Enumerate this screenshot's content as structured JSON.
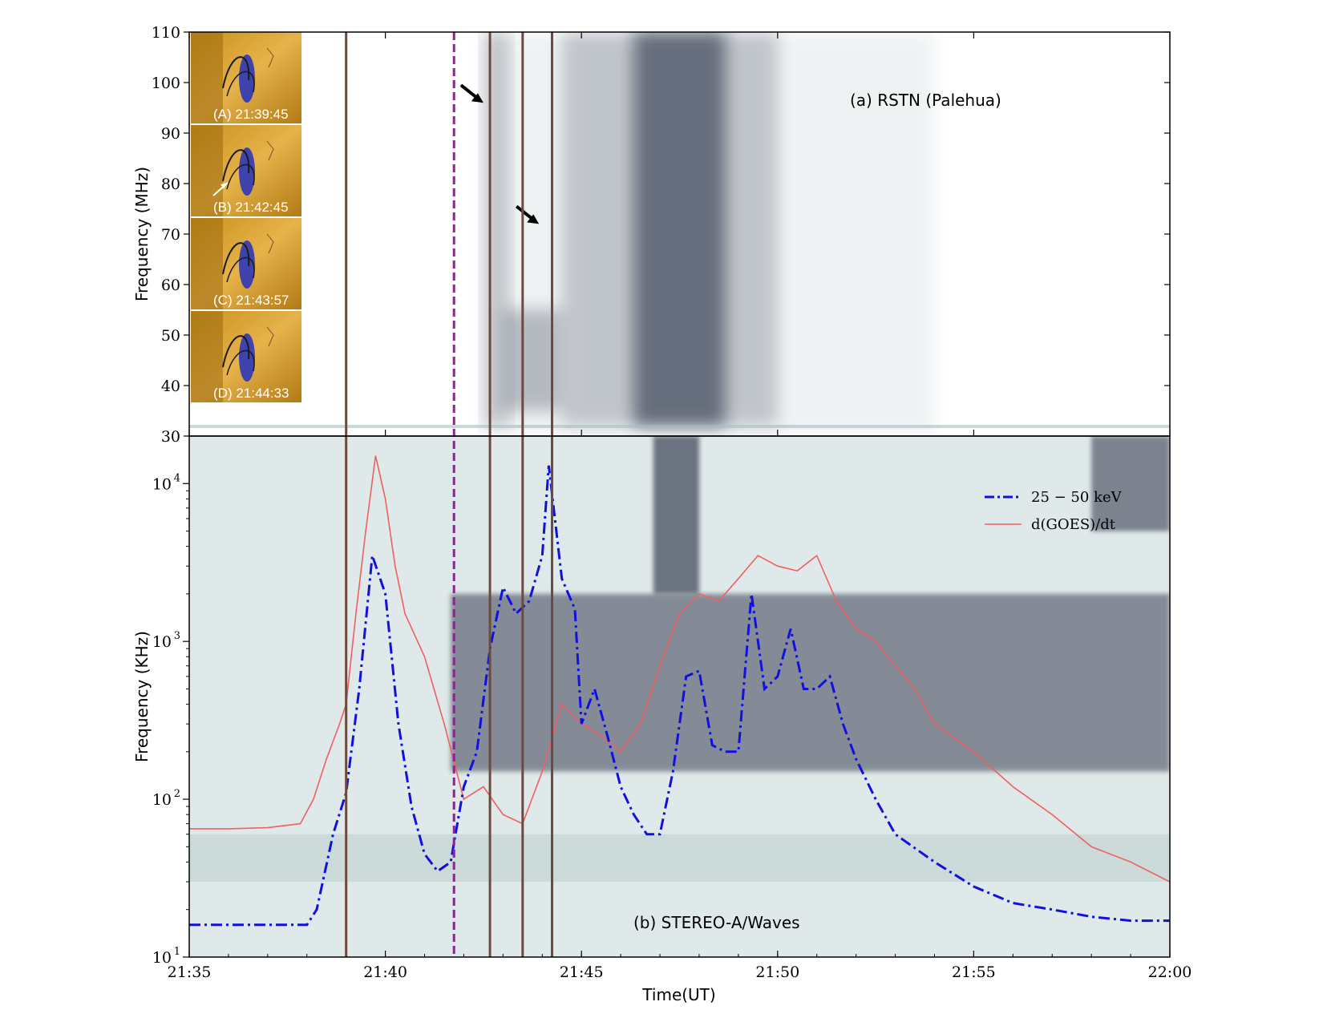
{
  "chart_data": [
    {
      "panel": "a",
      "type": "heatmap",
      "label": "(a) RSTN (Palehua)",
      "ylabel": "Frequency (MHz)",
      "ylim": [
        30,
        110
      ],
      "yticks": [
        30,
        40,
        50,
        60,
        70,
        80,
        90,
        100,
        110
      ],
      "xlim": [
        "21:35",
        "22:00"
      ],
      "insets": [
        {
          "label": "(A) 21:39:45"
        },
        {
          "label": "(B) 21:42:45"
        },
        {
          "label": "(C) 21:43:57"
        },
        {
          "label": "(D) 21:44:33"
        }
      ],
      "bursts": [
        {
          "t_start": "21:42:30",
          "t_end": "21:43:10",
          "f_low": 32,
          "f_high": 110,
          "intensity": 0.35
        },
        {
          "t_start": "21:43:00",
          "t_end": "21:44:30",
          "f_low": 35,
          "f_high": 55,
          "intensity": 0.45
        },
        {
          "t_start": "21:46:20",
          "t_end": "21:48:40",
          "f_low": 32,
          "f_high": 110,
          "intensity": 0.95
        },
        {
          "t_start": "21:44:30",
          "t_end": "21:50:00",
          "f_low": 32,
          "f_high": 110,
          "intensity": 0.35
        }
      ],
      "arrows": [
        {
          "time": "21:42:30",
          "freq": 96
        },
        {
          "time": "21:43:55",
          "freq": 72
        }
      ]
    },
    {
      "panel": "b",
      "type": "line",
      "label": "(b) STEREO-A/Waves",
      "xlabel": "Time(UT)",
      "ylabel": "Frequency (KHz)",
      "yscale": "log",
      "ylim": [
        10,
        20000
      ],
      "yticks": [
        10,
        100,
        1000,
        10000
      ],
      "ytick_labels": [
        "10^1",
        "10^2",
        "10^3",
        "10^4"
      ],
      "xlim": [
        "21:35",
        "22:00"
      ],
      "xticks": [
        "21:35",
        "21:40",
        "21:45",
        "21:50",
        "21:55",
        "22:00"
      ],
      "series": [
        {
          "name": "25 − 50 keV",
          "color": "#1010e0",
          "style": "dashdot",
          "x": [
            "21:35",
            "21:36",
            "21:37",
            "21:38",
            "21:38:15",
            "21:38:40",
            "21:39",
            "21:39:20",
            "21:39:40",
            "21:40",
            "21:40:20",
            "21:40:40",
            "21:41",
            "21:41:20",
            "21:41:40",
            "21:42",
            "21:42:20",
            "21:42:40",
            "21:43",
            "21:43:20",
            "21:43:40",
            "21:44",
            "21:44:10",
            "21:44:30",
            "21:44:50",
            "21:45",
            "21:45:20",
            "21:45:40",
            "21:46",
            "21:46:20",
            "21:46:40",
            "21:47",
            "21:47:20",
            "21:47:40",
            "21:48",
            "21:48:20",
            "21:48:40",
            "21:49",
            "21:49:20",
            "21:49:40",
            "21:50",
            "21:50:20",
            "21:50:40",
            "21:51",
            "21:51:20",
            "21:51:40",
            "21:52",
            "21:52:30",
            "21:53",
            "21:54",
            "21:55",
            "21:56",
            "21:57",
            "21:58",
            "21:59",
            "22:00"
          ],
          "y": [
            16,
            16,
            16,
            16,
            20,
            60,
            110,
            500,
            3500,
            2000,
            300,
            90,
            45,
            35,
            40,
            120,
            200,
            900,
            2200,
            1500,
            1800,
            3500,
            13000,
            2500,
            1600,
            300,
            500,
            250,
            120,
            80,
            60,
            60,
            150,
            600,
            650,
            220,
            200,
            200,
            2000,
            500,
            600,
            1200,
            500,
            500,
            600,
            300,
            180,
            100,
            60,
            40,
            28,
            22,
            20,
            18,
            17,
            17
          ]
        },
        {
          "name": "d(GOES)/dt",
          "color": "#f06060",
          "style": "solid",
          "x": [
            "21:35",
            "21:36",
            "21:37",
            "21:37:50",
            "21:38:10",
            "21:38:30",
            "21:38:50",
            "21:39",
            "21:39:15",
            "21:39:30",
            "21:39:45",
            "21:40",
            "21:40:15",
            "21:40:30",
            "21:41",
            "21:41:30",
            "21:42",
            "21:42:30",
            "21:43",
            "21:43:30",
            "21:44",
            "21:44:30",
            "21:45",
            "21:45:30",
            "21:46",
            "21:46:30",
            "21:47",
            "21:47:30",
            "21:48",
            "21:48:30",
            "21:49",
            "21:49:30",
            "21:50",
            "21:50:30",
            "21:51",
            "21:51:30",
            "21:52",
            "21:52:30",
            "21:53",
            "21:53:30",
            "21:54",
            "21:55",
            "21:56",
            "21:57",
            "21:58",
            "21:59",
            "22:00"
          ],
          "y": [
            65,
            65,
            66,
            70,
            100,
            180,
            300,
            400,
            1500,
            5000,
            15000,
            8000,
            3000,
            1500,
            800,
            300,
            100,
            120,
            80,
            70,
            150,
            400,
            300,
            250,
            200,
            300,
            700,
            1500,
            2000,
            1800,
            2500,
            3500,
            3000,
            2800,
            3500,
            1800,
            1200,
            1000,
            700,
            500,
            300,
            200,
            120,
            80,
            50,
            40,
            30
          ]
        }
      ],
      "legend": {
        "placement": "upper-right",
        "entries": [
          "25 − 50 keV",
          "d(GOES)/dt"
        ]
      },
      "spectrogram_bands": [
        {
          "t_start": "21:41:40",
          "t_end": "22:00",
          "f_low": 150,
          "f_high": 2000,
          "intensity": 0.55
        },
        {
          "t_start": "21:46:50",
          "t_end": "21:48:00",
          "f_low": 2000,
          "f_high": 20000,
          "intensity": 0.7
        },
        {
          "t_start": "21:58:00",
          "t_end": "22:00",
          "f_low": 5000,
          "f_high": 20000,
          "intensity": 0.6
        }
      ]
    }
  ],
  "vertical_markers": [
    {
      "time": "21:39:00",
      "color": "#6b4a40",
      "style": "solid"
    },
    {
      "time": "21:41:45",
      "color": "#9a1aa0",
      "style": "dashed"
    },
    {
      "time": "21:42:40",
      "color": "#6b4a40",
      "style": "solid"
    },
    {
      "time": "21:43:30",
      "color": "#6b4a40",
      "style": "solid"
    },
    {
      "time": "21:44:15",
      "color": "#6b4a40",
      "style": "solid"
    }
  ]
}
